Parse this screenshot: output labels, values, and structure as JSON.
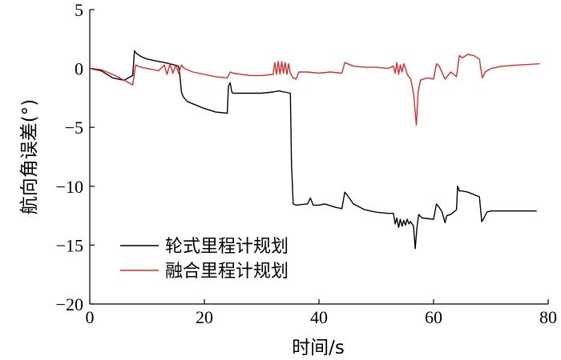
{
  "chart_data": {
    "type": "line",
    "xlabel": "时间/s",
    "ylabel": "航向角误差(°)",
    "xlim": [
      0,
      80
    ],
    "ylim": [
      -20,
      5
    ],
    "xticks": [
      0,
      20,
      40,
      60,
      80
    ],
    "yticks": [
      5,
      0,
      -5,
      -10,
      -15,
      -20
    ],
    "grid": false,
    "legend_position": "bottom-left",
    "series": [
      {
        "name": "轮式里程计规划",
        "color": "#000000",
        "x": [
          0,
          2,
          4,
          6,
          7.5,
          7.8,
          8.1,
          9,
          10,
          12,
          13,
          14,
          15.5,
          15.7,
          16,
          16.3,
          17,
          18,
          20,
          22,
          24,
          24.2,
          24.5,
          24.8,
          25,
          28,
          30,
          32,
          33,
          34,
          35,
          35.2,
          35.5,
          36,
          38,
          38.5,
          39,
          40,
          41,
          43,
          44,
          44.5,
          45,
          46,
          48,
          50,
          52,
          53,
          53.3,
          53.6,
          53.9,
          54.2,
          54.5,
          54.8,
          55.1,
          55.4,
          55.7,
          56,
          56.5,
          56.8,
          57.1,
          57.4,
          58,
          60,
          60.5,
          61,
          61.5,
          62,
          62.3,
          63,
          64,
          64.2,
          64.5,
          65,
          66,
          68,
          68.4,
          68.8,
          69.3,
          70,
          72,
          75,
          78
        ],
        "y": [
          0,
          -0.2,
          -0.8,
          -1.0,
          -0.6,
          1.5,
          1.3,
          1.0,
          0.8,
          0.6,
          0.5,
          0.4,
          0.2,
          -0.5,
          -2.0,
          -2.4,
          -2.8,
          -3.0,
          -3.4,
          -3.7,
          -3.8,
          -1.5,
          -1.2,
          -2.0,
          -2.1,
          -2.1,
          -2.1,
          -2.0,
          -1.9,
          -2.0,
          -2.1,
          -8.0,
          -11.5,
          -11.6,
          -11.5,
          -11.0,
          -11.6,
          -11.6,
          -11.5,
          -11.8,
          -11.9,
          -10.5,
          -10.8,
          -11.5,
          -12.0,
          -12.2,
          -12.3,
          -12.3,
          -13.2,
          -12.7,
          -13.5,
          -12.8,
          -13.4,
          -12.9,
          -13.3,
          -12.8,
          -13.2,
          -13.0,
          -13.4,
          -15.3,
          -13.5,
          -12.4,
          -12.7,
          -12.8,
          -11.5,
          -11.8,
          -12.2,
          -13.1,
          -12.5,
          -12.4,
          -12.0,
          -10.0,
          -10.4,
          -10.4,
          -10.5,
          -10.9,
          -13.0,
          -12.7,
          -12.2,
          -12.1,
          -12.1,
          -12.1,
          -12.1
        ]
      },
      {
        "name": "融合里程计规划",
        "color": "#d92b2b",
        "x": [
          0,
          2,
          4,
          6,
          7.5,
          8,
          9,
          10,
          12,
          13,
          13.5,
          14,
          14.5,
          15,
          15.5,
          16,
          16.5,
          17,
          18,
          20,
          22,
          24,
          24.5,
          25,
          28,
          30,
          32,
          32.3,
          32.6,
          32.9,
          33.2,
          33.5,
          33.8,
          34.1,
          34.4,
          34.7,
          35,
          35.5,
          36,
          36.5,
          38,
          40,
          42,
          44,
          44.5,
          45,
          46,
          48,
          50,
          52,
          53,
          53.3,
          53.6,
          53.9,
          54.2,
          54.5,
          54.8,
          55.1,
          55.4,
          56,
          56.5,
          57,
          57.3,
          57.7,
          58.2,
          59,
          60,
          60.5,
          61,
          62,
          63,
          64,
          64.5,
          65,
          66,
          67,
          68,
          68.5,
          69,
          70,
          72,
          75,
          78.5
        ],
        "y": [
          0,
          -0.1,
          -0.5,
          -1.0,
          -1.4,
          0.3,
          0.1,
          0.0,
          -0.2,
          0.3,
          -0.5,
          0.4,
          -0.4,
          0.3,
          -0.4,
          0.3,
          0.0,
          -0.1,
          -0.3,
          -0.5,
          -0.7,
          -0.8,
          -0.3,
          -0.4,
          -0.6,
          -0.6,
          -0.5,
          0.5,
          -0.5,
          0.6,
          -0.5,
          0.6,
          -0.4,
          0.5,
          -0.5,
          0.4,
          -0.4,
          -0.8,
          -0.9,
          -0.3,
          -0.3,
          -0.4,
          -0.3,
          -0.4,
          0.5,
          0.4,
          0.2,
          0.1,
          0.1,
          0.0,
          0.2,
          -0.4,
          0.5,
          -0.5,
          0.3,
          -0.3,
          0.4,
          0.0,
          -0.5,
          -0.9,
          -2.1,
          -4.8,
          -2.0,
          -1.0,
          -0.9,
          -0.8,
          -0.9,
          0.4,
          0.2,
          -0.9,
          -0.3,
          -0.7,
          1.1,
          0.9,
          1.2,
          1.1,
          0.8,
          -0.8,
          -0.3,
          0.0,
          0.2,
          0.3,
          0.4
        ]
      }
    ]
  }
}
